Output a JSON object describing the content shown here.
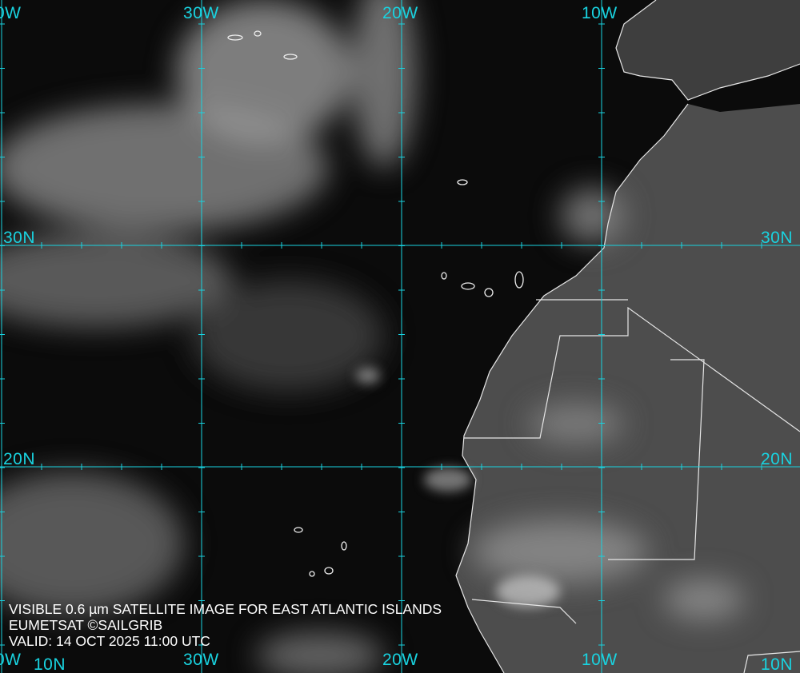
{
  "caption": {
    "line1": "VISIBLE 0.6 µm SATELLITE IMAGE FOR EAST ATLANTIC ISLANDS",
    "line2": "EUMETSAT ©SAILGRIB",
    "line3": "VALID:  14 OCT 2025 11:00 UTC"
  },
  "grid": {
    "color": "#19d3e0",
    "top_labels": [
      "0W",
      "30W",
      "20W",
      "10W"
    ],
    "bottom_labels": [
      "0W",
      "30W",
      "20W",
      "10W"
    ],
    "left_labels": [
      "30N",
      "20N",
      "10N"
    ],
    "right_labels": [
      "30N",
      "20N",
      "10N"
    ]
  },
  "colors": {
    "ocean": "#0b0b0b",
    "land": "#4a4a4a",
    "cloud": "#c8c8c8",
    "border": "#e6e6e6"
  }
}
